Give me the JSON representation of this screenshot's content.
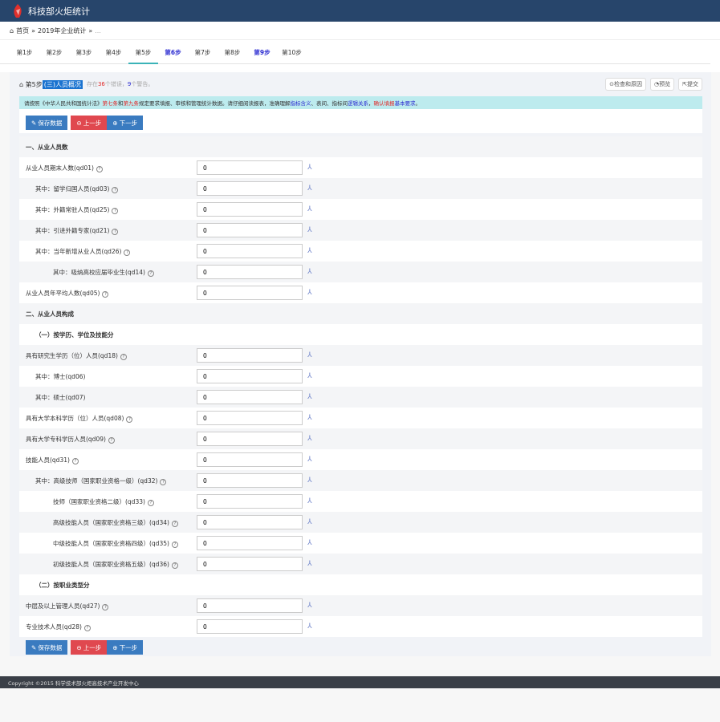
{
  "app": {
    "title": "科技部火炬统计"
  },
  "breadcrumb": {
    "home": "首页",
    "sep": "»",
    "item1": "2019年企业统计",
    "item2": "..."
  },
  "tabs": [
    {
      "label": "第1步"
    },
    {
      "label": "第2步"
    },
    {
      "label": "第3步"
    },
    {
      "label": "第4步"
    },
    {
      "label": "第5步",
      "active": true
    },
    {
      "label": "第6步",
      "highlight": true
    },
    {
      "label": "第7步"
    },
    {
      "label": "第8步"
    },
    {
      "label": "第9步",
      "highlight": true
    },
    {
      "label": "第10步"
    }
  ],
  "title": {
    "step": "第5步",
    "name": "(三)人员概况",
    "status_pre": "存在",
    "errors": "36",
    "status_mid": "个错误，",
    "warnings": "9",
    "status_post": "个警告。"
  },
  "actions": {
    "check": "检查和原因",
    "preview": "预览",
    "submit": "提交"
  },
  "notice": {
    "p1": "请按照《中华人民共和国统计法》",
    "r1": "第七条",
    "p2": " 和 ",
    "r2": "第九条",
    "p3": " 规定要求填报、审核和管理统计数据。请仔细阅读报表，准确理解",
    "b1": "指标含义",
    "p4": "、表间、指标间",
    "b2": "逻辑关系",
    "p5": "，",
    "r3": "确认填报",
    "b3": "基本要求",
    "p6": "。"
  },
  "buttons": {
    "save": "保存数据",
    "prev": "上一步",
    "next": "下一步"
  },
  "rows": [
    {
      "type": "head",
      "label": "一、从业人员数"
    },
    {
      "label": "从业人员期末人数(qd01)",
      "level": 0,
      "value": "0"
    },
    {
      "label": "其中：留学归国人员(qd03)",
      "level": 1,
      "value": "0"
    },
    {
      "label": "其中：外籍常驻人员(qd25)",
      "level": 1,
      "value": "0"
    },
    {
      "label": "其中：引进外籍专家(qd21)",
      "level": 1,
      "value": "0"
    },
    {
      "label": "其中：当年新增从业人员(qd26)",
      "level": 1,
      "value": "0"
    },
    {
      "label": "其中：吸纳高校应届毕业生(qd14)",
      "level": 2,
      "value": "0"
    },
    {
      "label": "从业人员年平均人数(qd05)",
      "level": 0,
      "value": "0"
    },
    {
      "type": "head",
      "label": "二、从业人员构成"
    },
    {
      "type": "head",
      "label": "（一）按学历、学位及技能分",
      "level": 1
    },
    {
      "label": "具有研究生学历（位）人员(qd18)",
      "level": 0,
      "value": "0"
    },
    {
      "label": "其中：博士(qd06)",
      "level": 1,
      "value": "0",
      "noq": true
    },
    {
      "label": "其中：硕士(qd07)",
      "level": 1,
      "value": "0",
      "noq": true
    },
    {
      "label": "具有大学本科学历（位）人员(qd08)",
      "level": 0,
      "value": "0"
    },
    {
      "label": "具有大学专科学历人员(qd09)",
      "level": 0,
      "value": "0"
    },
    {
      "label": "技能人员(qd31)",
      "level": 0,
      "value": "0"
    },
    {
      "label": "其中：高级技师（国家职业资格一级）(qd32)",
      "level": 1,
      "value": "0"
    },
    {
      "label": "技师（国家职业资格二级）(qd33)",
      "level": 2,
      "value": "0"
    },
    {
      "label": "高级技能人员（国家职业资格三级）(qd34)",
      "level": 2,
      "value": "0"
    },
    {
      "label": "中级技能人员（国家职业资格四级）(qd35)",
      "level": 2,
      "value": "0"
    },
    {
      "label": "初级技能人员（国家职业资格五级）(qd36)",
      "level": 2,
      "value": "0"
    },
    {
      "type": "head",
      "label": "（二）按职业类型分",
      "level": 1
    },
    {
      "label": "中层及以上管理人员(qd27)",
      "level": 0,
      "value": "0"
    },
    {
      "label": "专业技术人员(qd28)",
      "level": 0,
      "value": "0"
    }
  ],
  "footer": {
    "text": "Copyright ©2015 科学技术部火炬高技术产业开发中心"
  }
}
